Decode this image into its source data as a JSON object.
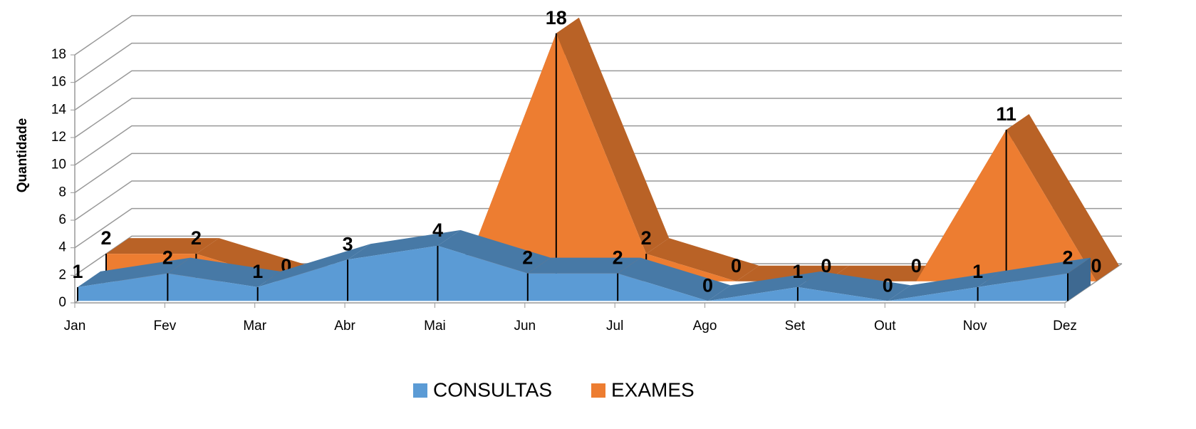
{
  "chart_data": {
    "type": "area3d",
    "y_label": "Quantidade",
    "categories": [
      "Jan",
      "Fev",
      "Mar",
      "Abr",
      "Mai",
      "Jun",
      "Jul",
      "Ago",
      "Set",
      "Out",
      "Nov",
      "Dez"
    ],
    "series": [
      {
        "name": "CONSULTAS",
        "color": "#5b9bd5",
        "values": [
          1,
          2,
          1,
          3,
          4,
          2,
          2,
          0,
          1,
          0,
          1,
          2
        ]
      },
      {
        "name": "EXAMES",
        "color": "#ed7d31",
        "values": [
          2,
          2,
          0,
          0,
          1,
          18,
          2,
          0,
          0,
          0,
          11,
          0
        ]
      }
    ],
    "ylim": [
      0,
      18
    ],
    "yticks": [
      0,
      2,
      4,
      6,
      8,
      10,
      12,
      14,
      16,
      18
    ],
    "grid": true,
    "legend": "bottom"
  }
}
